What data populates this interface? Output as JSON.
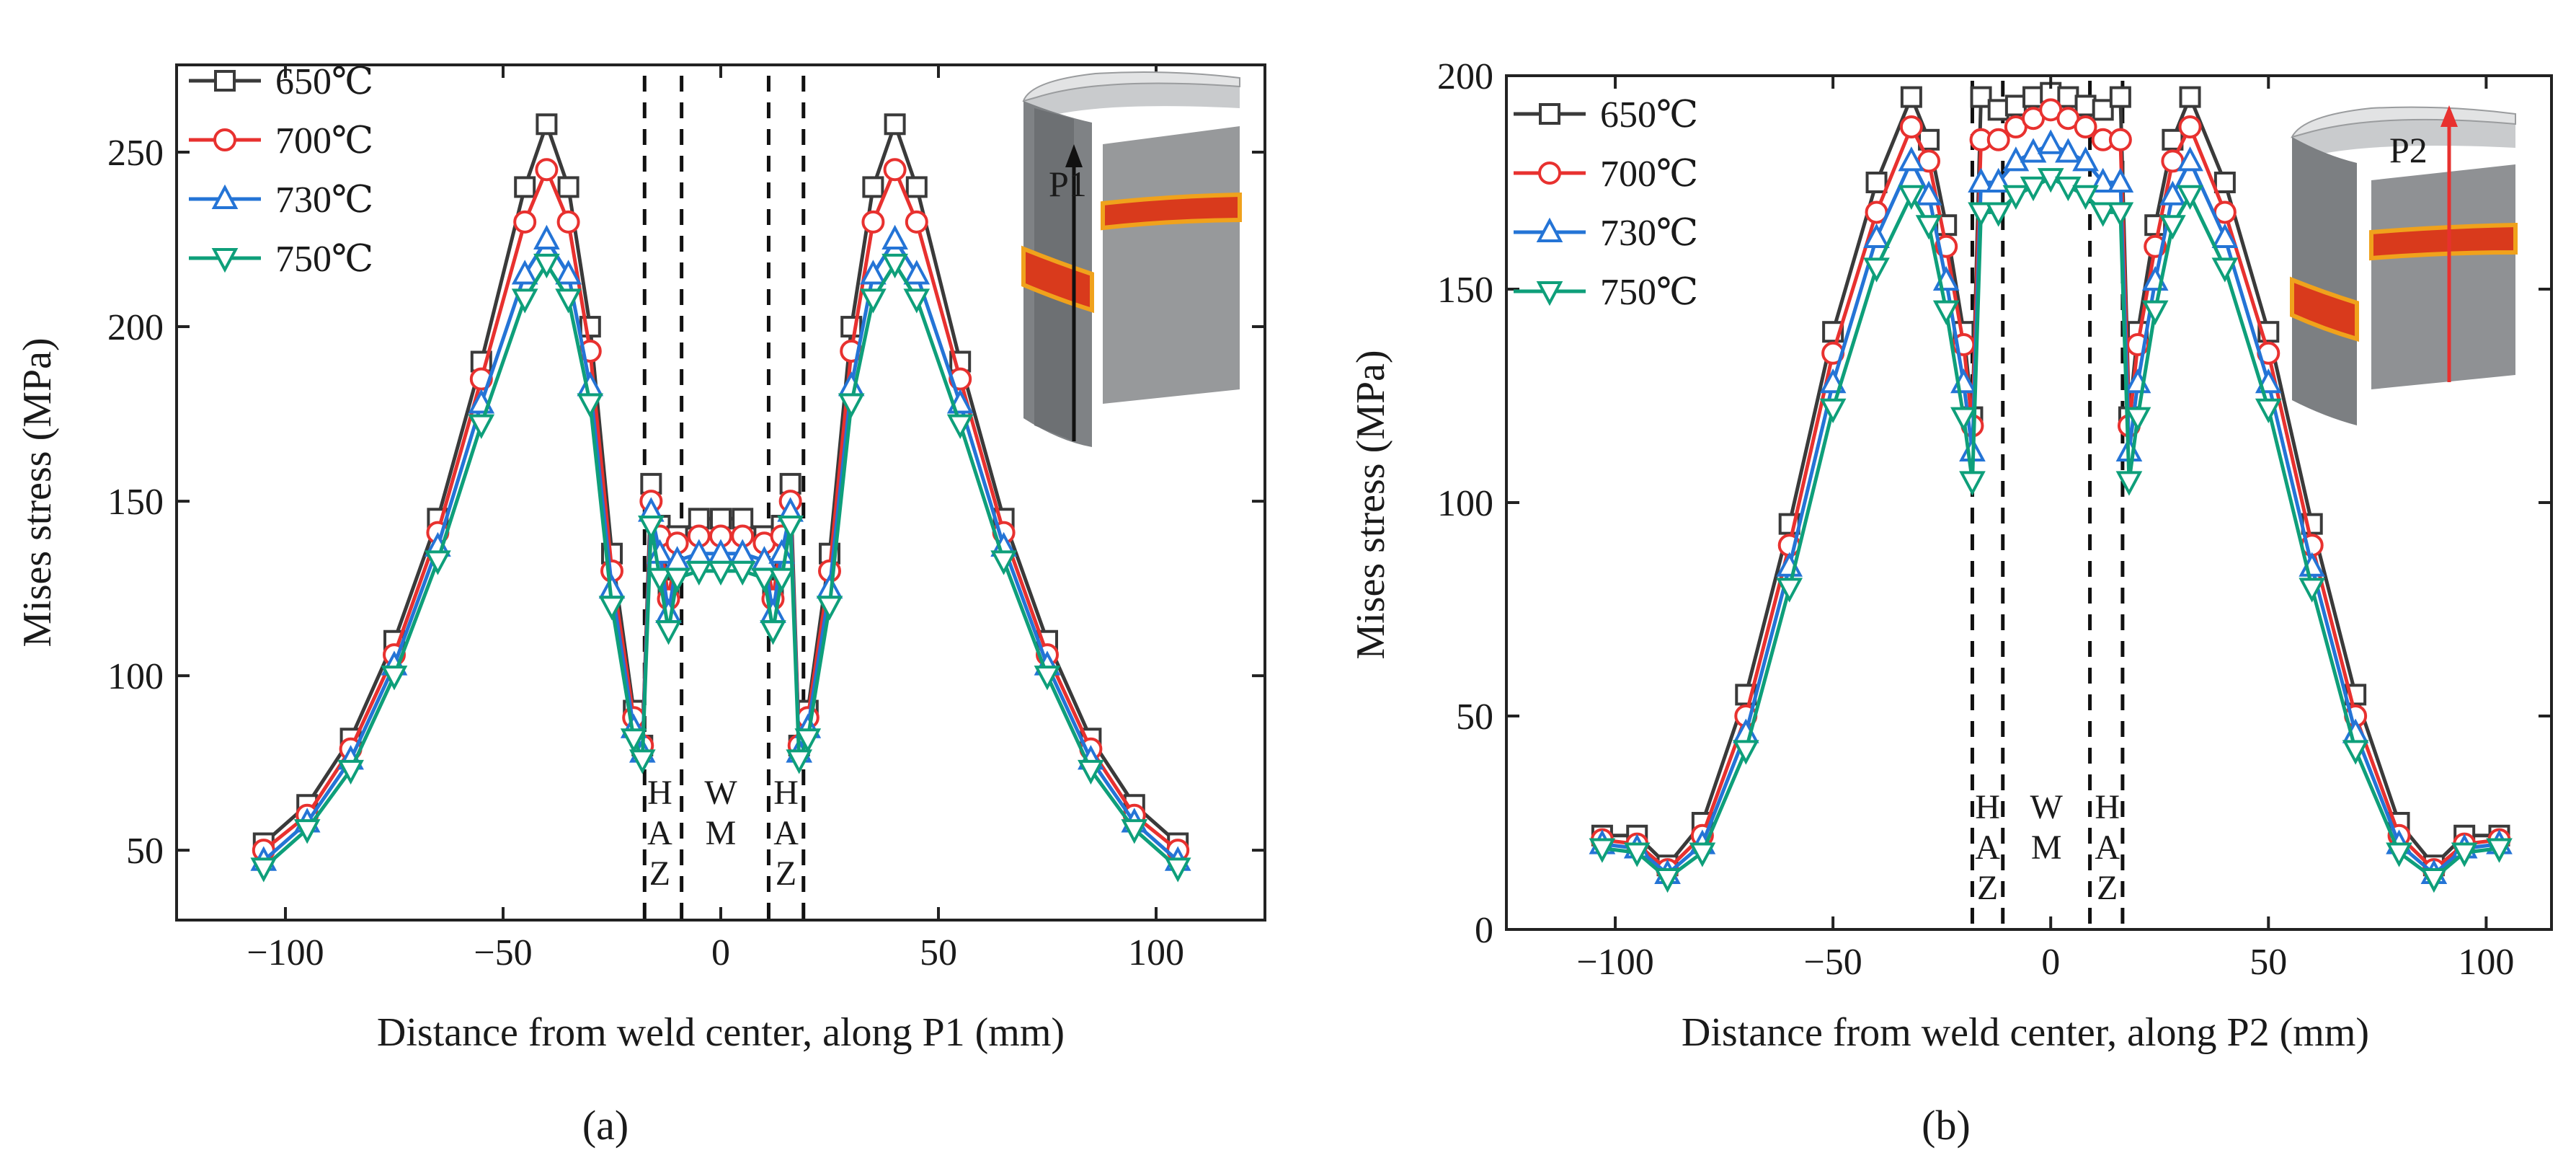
{
  "colors": {
    "650": "#3a3a3a",
    "700": "#e8312f",
    "730": "#2474d6",
    "750": "#0e9f7a",
    "pipe_body": "#8a8d90",
    "weld_band": "#d93a1c",
    "weld_edge": "#f0a21c"
  },
  "chart_data": [
    {
      "panel": "(a)",
      "type": "line",
      "xlabel": "Distance from weld center, along P1 (mm)",
      "ylabel": "Mises stress (MPa)",
      "xlim": [
        -125,
        125
      ],
      "ylim": [
        30,
        275
      ],
      "xticks": [
        -100,
        -50,
        0,
        50,
        100
      ],
      "yticks": [
        50,
        100,
        150,
        200,
        250
      ],
      "xtick_labels": [
        "−100",
        "−50",
        "0",
        "50",
        "100"
      ],
      "ytick_labels": [
        "50",
        "100",
        "150",
        "200",
        "250"
      ],
      "path_label": "P1",
      "path_color": "#111111",
      "legend_position": "top-left",
      "zone_lines_x": [
        -17.5,
        -9,
        11,
        19
      ],
      "zone_labels": [
        {
          "x": -14,
          "text": [
            "H",
            "A",
            "Z"
          ]
        },
        {
          "x": 0,
          "text": [
            "W",
            "M"
          ]
        },
        {
          "x": 15,
          "text": [
            "H",
            "A",
            "Z"
          ]
        }
      ],
      "series": [
        {
          "name": "650℃",
          "key": "650",
          "marker": "square",
          "x": [
            -105,
            -95,
            -85,
            -75,
            -65,
            -55,
            -45,
            -40,
            -35,
            -30,
            -25,
            -20,
            -18,
            -16,
            -14,
            -12,
            -10,
            -5,
            0,
            5,
            10,
            12,
            14,
            16,
            18,
            20,
            25,
            30,
            35,
            40,
            45,
            55,
            65,
            75,
            85,
            95,
            105
          ],
          "y": [
            52,
            63,
            82,
            110,
            145,
            190,
            240,
            258,
            240,
            200,
            135,
            90,
            80,
            155,
            143,
            125,
            140,
            145,
            145,
            145,
            140,
            125,
            143,
            155,
            80,
            90,
            135,
            200,
            240,
            258,
            240,
            190,
            145,
            110,
            82,
            63,
            52
          ]
        },
        {
          "name": "700℃",
          "key": "700",
          "marker": "circle",
          "x": [
            -105,
            -95,
            -85,
            -75,
            -65,
            -55,
            -45,
            -40,
            -35,
            -30,
            -25,
            -20,
            -18,
            -16,
            -14,
            -12,
            -10,
            -5,
            0,
            5,
            10,
            12,
            14,
            16,
            18,
            20,
            25,
            30,
            35,
            40,
            45,
            55,
            65,
            75,
            85,
            95,
            105
          ],
          "y": [
            50,
            60,
            79,
            106,
            141,
            185,
            230,
            245,
            230,
            193,
            130,
            88,
            80,
            150,
            140,
            122,
            138,
            140,
            140,
            140,
            138,
            122,
            140,
            150,
            80,
            88,
            130,
            193,
            230,
            245,
            230,
            185,
            141,
            106,
            79,
            60,
            50
          ]
        },
        {
          "name": "730℃",
          "key": "730",
          "marker": "triangle-up",
          "x": [
            -105,
            -95,
            -85,
            -75,
            -65,
            -55,
            -45,
            -40,
            -35,
            -30,
            -25,
            -20,
            -18,
            -16,
            -14,
            -12,
            -10,
            -5,
            0,
            5,
            10,
            12,
            14,
            16,
            18,
            20,
            25,
            30,
            35,
            40,
            45,
            55,
            65,
            75,
            85,
            95,
            105
          ],
          "y": [
            47,
            58,
            76,
            103,
            137,
            178,
            215,
            225,
            215,
            183,
            125,
            85,
            78,
            147,
            135,
            118,
            133,
            135,
            135,
            135,
            133,
            118,
            135,
            147,
            78,
            85,
            125,
            183,
            215,
            225,
            215,
            178,
            137,
            103,
            76,
            58,
            47
          ]
        },
        {
          "name": "750℃",
          "key": "750",
          "marker": "triangle-down",
          "x": [
            -105,
            -95,
            -85,
            -75,
            -65,
            -55,
            -45,
            -40,
            -35,
            -30,
            -25,
            -20,
            -18,
            -16,
            -14,
            -12,
            -10,
            -5,
            0,
            5,
            10,
            12,
            14,
            16,
            18,
            20,
            25,
            30,
            35,
            40,
            45,
            55,
            65,
            75,
            85,
            95,
            105
          ],
          "y": [
            45,
            56,
            73,
            100,
            133,
            172,
            208,
            218,
            208,
            178,
            120,
            82,
            76,
            143,
            128,
            113,
            128,
            130,
            130,
            130,
            128,
            113,
            128,
            143,
            76,
            82,
            120,
            178,
            208,
            218,
            208,
            172,
            133,
            100,
            73,
            56,
            45
          ]
        }
      ]
    },
    {
      "panel": "(b)",
      "type": "line",
      "xlabel": "Distance from weld center, along P2 (mm)",
      "ylabel": "Mises stress (MPa)",
      "xlim": [
        -125,
        115
      ],
      "ylim": [
        0,
        200
      ],
      "xticks": [
        -100,
        -50,
        0,
        50,
        100
      ],
      "yticks": [
        0,
        50,
        100,
        150,
        200
      ],
      "xtick_labels": [
        "−100",
        "−50",
        "0",
        "50",
        "100"
      ],
      "ytick_labels": [
        "0",
        "50",
        "100",
        "150",
        "200"
      ],
      "path_label": "P2",
      "path_color": "#e8312f",
      "legend_position": "top-left",
      "zone_lines_x": [
        -18,
        -11,
        9,
        16.5
      ],
      "zone_labels": [
        {
          "x": -14.5,
          "text": [
            "H",
            "A",
            "Z"
          ]
        },
        {
          "x": -1,
          "text": [
            "W",
            "M"
          ]
        },
        {
          "x": 13,
          "text": [
            "H",
            "A",
            "Z"
          ]
        }
      ],
      "series": [
        {
          "name": "650℃",
          "key": "650",
          "marker": "square",
          "x": [
            -103,
            -95,
            -88,
            -80,
            -70,
            -60,
            -50,
            -40,
            -32,
            -28,
            -24,
            -20,
            -18,
            -16,
            -12,
            -8,
            -4,
            0,
            4,
            8,
            12,
            16,
            18,
            20,
            24,
            28,
            32,
            40,
            50,
            60,
            70,
            80,
            88,
            95,
            103
          ],
          "y": [
            22,
            22,
            15,
            25,
            55,
            95,
            140,
            175,
            195,
            185,
            165,
            140,
            120,
            195,
            192,
            193,
            195,
            196,
            195,
            193,
            192,
            195,
            120,
            140,
            165,
            185,
            195,
            175,
            140,
            95,
            55,
            25,
            15,
            22,
            22
          ]
        },
        {
          "name": "700℃",
          "key": "700",
          "marker": "circle",
          "x": [
            -103,
            -95,
            -88,
            -80,
            -70,
            -60,
            -50,
            -40,
            -32,
            -28,
            -24,
            -20,
            -18,
            -16,
            -12,
            -8,
            -4,
            0,
            4,
            8,
            12,
            16,
            18,
            20,
            24,
            28,
            32,
            40,
            50,
            60,
            70,
            80,
            88,
            95,
            103
          ],
          "y": [
            21,
            20,
            14,
            22,
            50,
            90,
            135,
            168,
            188,
            180,
            160,
            137,
            118,
            185,
            185,
            188,
            190,
            192,
            190,
            188,
            185,
            185,
            118,
            137,
            160,
            180,
            188,
            168,
            135,
            90,
            50,
            22,
            14,
            20,
            21
          ]
        },
        {
          "name": "730℃",
          "key": "730",
          "marker": "triangle-up",
          "x": [
            -103,
            -95,
            -88,
            -80,
            -70,
            -60,
            -50,
            -40,
            -32,
            -28,
            -24,
            -20,
            -18,
            -16,
            -12,
            -8,
            -4,
            0,
            4,
            8,
            12,
            16,
            18,
            20,
            24,
            28,
            32,
            40,
            50,
            60,
            70,
            80,
            88,
            95,
            103
          ],
          "y": [
            20,
            19,
            13,
            20,
            46,
            85,
            128,
            162,
            180,
            172,
            152,
            128,
            112,
            175,
            175,
            180,
            182,
            184,
            182,
            180,
            175,
            175,
            112,
            128,
            152,
            172,
            180,
            162,
            128,
            85,
            46,
            20,
            13,
            19,
            20
          ]
        },
        {
          "name": "750℃",
          "key": "750",
          "marker": "triangle-down",
          "x": [
            -103,
            -95,
            -88,
            -80,
            -70,
            -60,
            -50,
            -40,
            -32,
            -28,
            -24,
            -20,
            -18,
            -16,
            -12,
            -8,
            -4,
            0,
            4,
            8,
            12,
            16,
            18,
            20,
            24,
            28,
            32,
            40,
            50,
            60,
            70,
            80,
            88,
            95,
            103
          ],
          "y": [
            19,
            18,
            12,
            18,
            42,
            80,
            122,
            155,
            172,
            165,
            145,
            120,
            105,
            168,
            168,
            172,
            174,
            176,
            174,
            172,
            168,
            168,
            105,
            120,
            145,
            165,
            172,
            155,
            122,
            80,
            42,
            18,
            12,
            18,
            19
          ]
        }
      ]
    }
  ]
}
